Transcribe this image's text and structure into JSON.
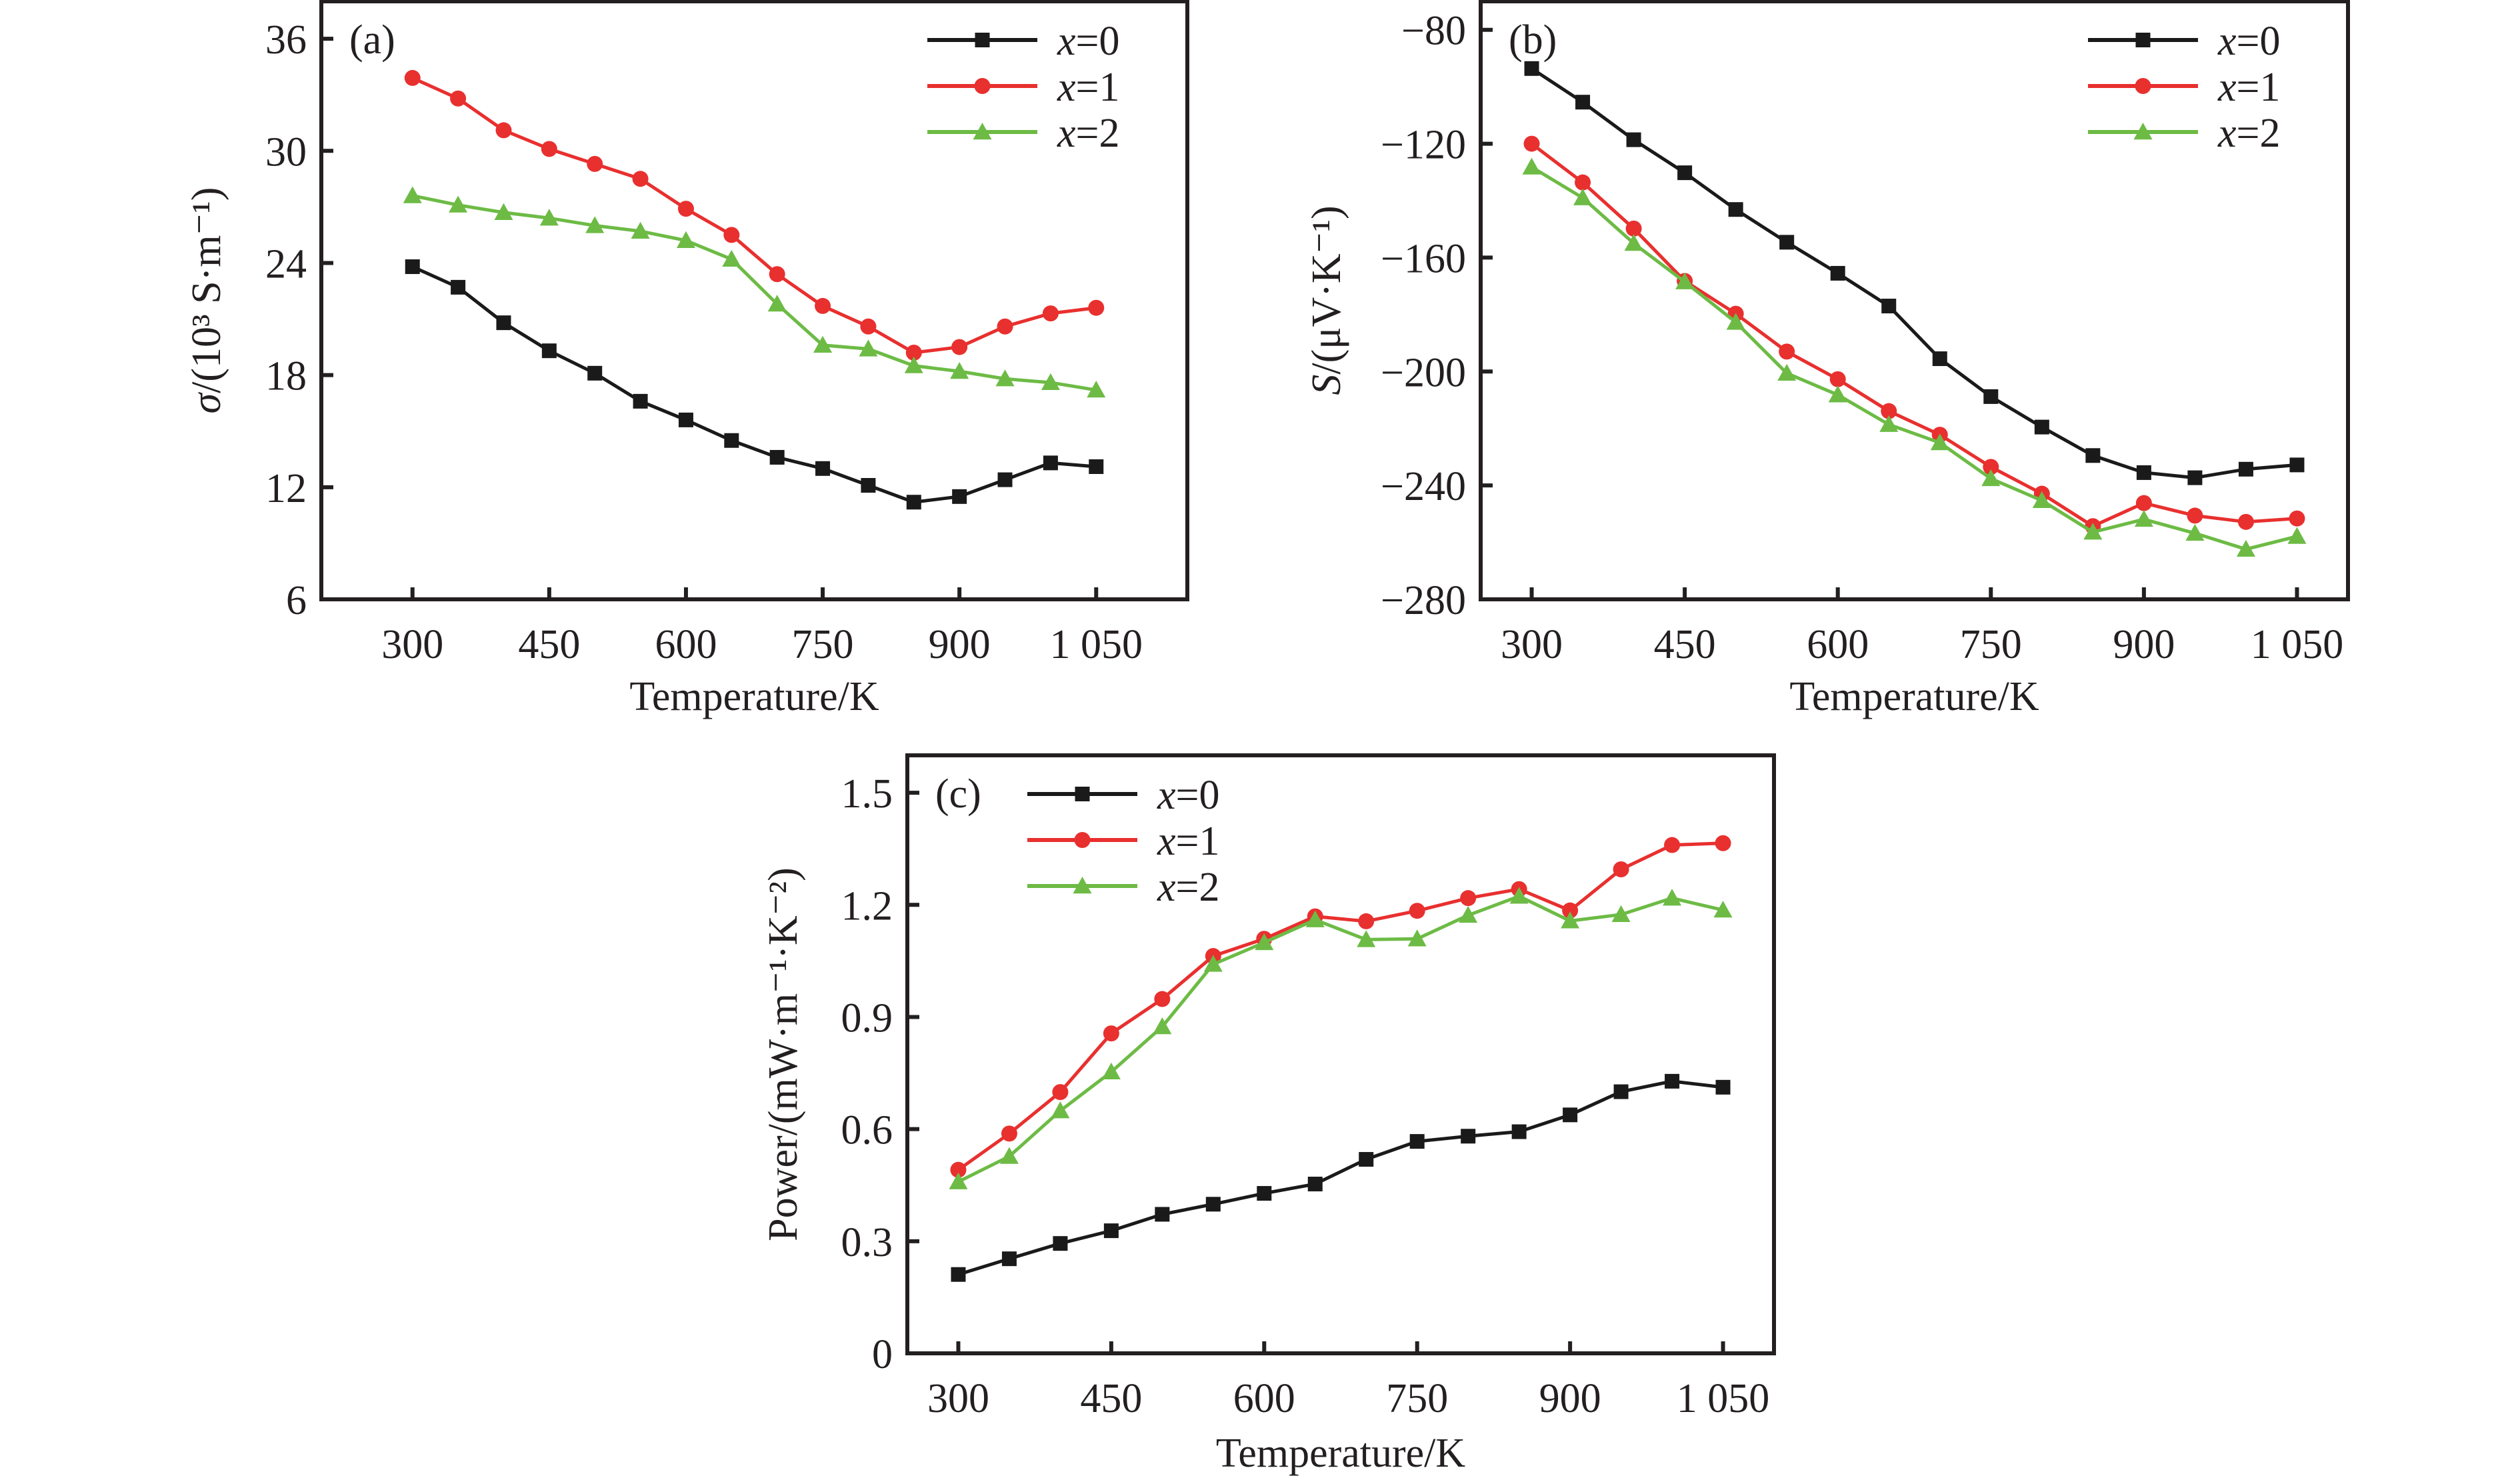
{
  "chart_data": [
    {
      "type": "line",
      "panel_label": "(a)",
      "title": "",
      "xlabel": "Temperature/K",
      "ylabel": "σ/(10³ S·m⁻¹)",
      "ylabel_parts": {
        "symbol": "σ",
        "rest": "/(10³ S·m⁻¹)"
      },
      "xlim": [
        200,
        1150
      ],
      "ylim": [
        6,
        38
      ],
      "xticks": [
        300,
        450,
        600,
        750,
        900,
        1050
      ],
      "xtick_labels": [
        "300",
        "450",
        "600",
        "750",
        "900",
        "1 050"
      ],
      "yticks": [
        6,
        12,
        18,
        24,
        30,
        36
      ],
      "ytick_labels": [
        "6",
        "12",
        "18",
        "24",
        "30",
        "36"
      ],
      "grid": false,
      "legend_position": "top-right",
      "x": [
        300,
        350,
        400,
        450,
        500,
        550,
        600,
        650,
        700,
        750,
        800,
        850,
        900,
        950,
        1000,
        1050
      ],
      "series": [
        {
          "name": "x=0",
          "var": "x",
          "eq": "=0",
          "color": "#1a1a1a",
          "marker": "square",
          "values": [
            23.8,
            22.7,
            20.8,
            19.3,
            18.1,
            16.6,
            15.6,
            14.5,
            13.6,
            13.0,
            12.1,
            11.2,
            11.5,
            12.4,
            13.3,
            13.1
          ]
        },
        {
          "name": "x=1",
          "var": "x",
          "eq": "=1",
          "color": "#e8302f",
          "marker": "circle",
          "values": [
            33.9,
            32.8,
            31.1,
            30.1,
            29.3,
            28.5,
            26.9,
            25.5,
            23.4,
            21.7,
            20.6,
            19.2,
            19.5,
            20.6,
            21.3,
            21.6
          ]
        },
        {
          "name": "x=2",
          "var": "x",
          "eq": "=2",
          "color": "#6dbb45",
          "marker": "triangle",
          "values": [
            27.6,
            27.1,
            26.7,
            26.4,
            26.0,
            25.7,
            25.2,
            24.2,
            21.8,
            19.6,
            19.4,
            18.5,
            18.2,
            17.8,
            17.6,
            17.2
          ]
        }
      ]
    },
    {
      "type": "line",
      "panel_label": "(b)",
      "title": "",
      "xlabel": "Temperature/K",
      "ylabel": "S/(μV·K⁻¹)",
      "ylabel_parts": {
        "symbol": "S",
        "rest": "/(μV·K⁻¹)"
      },
      "xlim": [
        250,
        1100
      ],
      "ylim": [
        -280,
        -70
      ],
      "xticks": [
        300,
        450,
        600,
        750,
        900,
        1050
      ],
      "xtick_labels": [
        "300",
        "450",
        "600",
        "750",
        "900",
        "1 050"
      ],
      "yticks": [
        -280,
        -240,
        -200,
        -160,
        -120,
        -80
      ],
      "ytick_labels": [
        "−280",
        "−240",
        "−200",
        "−160",
        "−120",
        "−80"
      ],
      "grid": false,
      "legend_position": "top-right",
      "x": [
        300,
        350,
        400,
        450,
        500,
        550,
        600,
        650,
        700,
        750,
        800,
        850,
        900,
        950,
        1000,
        1050
      ],
      "series": [
        {
          "name": "x=0",
          "var": "x",
          "eq": "=0",
          "color": "#1a1a1a",
          "marker": "square",
          "values": [
            -93.6,
            -105.4,
            -118.6,
            -130.2,
            -143.1,
            -154.6,
            -165.5,
            -177.0,
            -195.5,
            -208.8,
            -219.5,
            -229.5,
            -235.5,
            -237.3,
            -234.3,
            -232.8
          ]
        },
        {
          "name": "x=1",
          "var": "x",
          "eq": "=1",
          "color": "#e8302f",
          "marker": "circle",
          "values": [
            -120.0,
            -133.6,
            -149.8,
            -168.2,
            -179.7,
            -193.0,
            -202.7,
            -213.9,
            -222.2,
            -233.5,
            -242.9,
            -254.3,
            -246.2,
            -250.6,
            -252.8,
            -251.6
          ]
        },
        {
          "name": "x=2",
          "var": "x",
          "eq": "=2",
          "color": "#6dbb45",
          "marker": "triangle",
          "values": [
            -128.2,
            -139.0,
            -155.0,
            -168.5,
            -182.7,
            -200.6,
            -208.2,
            -218.6,
            -225.0,
            -237.6,
            -245.3,
            -256.4,
            -251.9,
            -256.8,
            -262.4,
            -257.9
          ]
        }
      ]
    },
    {
      "type": "line",
      "panel_label": "(c)",
      "title": "",
      "xlabel": "Temperature/K",
      "ylabel": "Power/(mW·m⁻¹·K⁻²)",
      "ylabel_parts": {
        "symbol": "",
        "rest": "Power/(mW·m⁻¹·K⁻²)"
      },
      "xlim": [
        250,
        1100
      ],
      "ylim": [
        0,
        1.6
      ],
      "xticks": [
        300,
        450,
        600,
        750,
        900,
        1050
      ],
      "xtick_labels": [
        "300",
        "450",
        "600",
        "750",
        "900",
        "1 050"
      ],
      "yticks": [
        0,
        0.3,
        0.6,
        0.9,
        1.2,
        1.5
      ],
      "ytick_labels": [
        "0",
        "0.3",
        "0.6",
        "0.9",
        "1.2",
        "1.5"
      ],
      "grid": false,
      "legend_position": "top-left",
      "x": [
        300,
        350,
        400,
        450,
        500,
        550,
        600,
        650,
        700,
        750,
        800,
        850,
        900,
        950,
        1000,
        1050
      ],
      "series": [
        {
          "name": "x=0",
          "var": "x",
          "eq": "=0",
          "color": "#1a1a1a",
          "marker": "square",
          "values": [
            0.211,
            0.253,
            0.294,
            0.328,
            0.372,
            0.399,
            0.428,
            0.453,
            0.519,
            0.567,
            0.581,
            0.593,
            0.638,
            0.7,
            0.728,
            0.712
          ]
        },
        {
          "name": "x=1",
          "var": "x",
          "eq": "=1",
          "color": "#e8302f",
          "marker": "circle",
          "values": [
            0.491,
            0.588,
            0.699,
            0.856,
            0.948,
            1.063,
            1.109,
            1.169,
            1.156,
            1.184,
            1.218,
            1.242,
            1.185,
            1.295,
            1.36,
            1.365
          ]
        },
        {
          "name": "x=2",
          "var": "x",
          "eq": "=2",
          "color": "#6dbb45",
          "marker": "triangle",
          "values": [
            0.459,
            0.527,
            0.649,
            0.753,
            0.874,
            1.041,
            1.099,
            1.16,
            1.107,
            1.109,
            1.172,
            1.223,
            1.157,
            1.174,
            1.218,
            1.186
          ]
        }
      ]
    }
  ]
}
